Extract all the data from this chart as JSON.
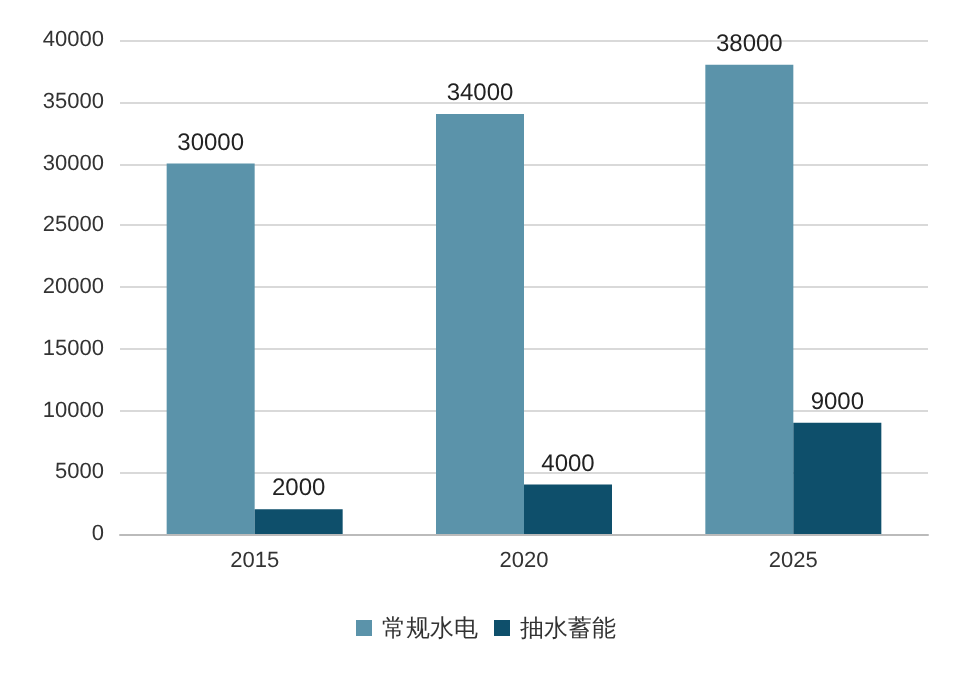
{
  "chart_data": {
    "type": "bar",
    "categories": [
      "2015",
      "2020",
      "2025"
    ],
    "series": [
      {
        "name": "常规水电",
        "color": "#5b93aa",
        "values": [
          30000,
          34000,
          38000
        ]
      },
      {
        "name": "抽水蓄能",
        "color": "#0e4f6b",
        "values": [
          2000,
          4000,
          9000
        ]
      }
    ],
    "ylim": [
      0,
      40000
    ],
    "yticks": [
      0,
      5000,
      10000,
      15000,
      20000,
      25000,
      30000,
      35000,
      40000
    ],
    "grid": "y",
    "legend": "bottom",
    "data_labels": true
  }
}
